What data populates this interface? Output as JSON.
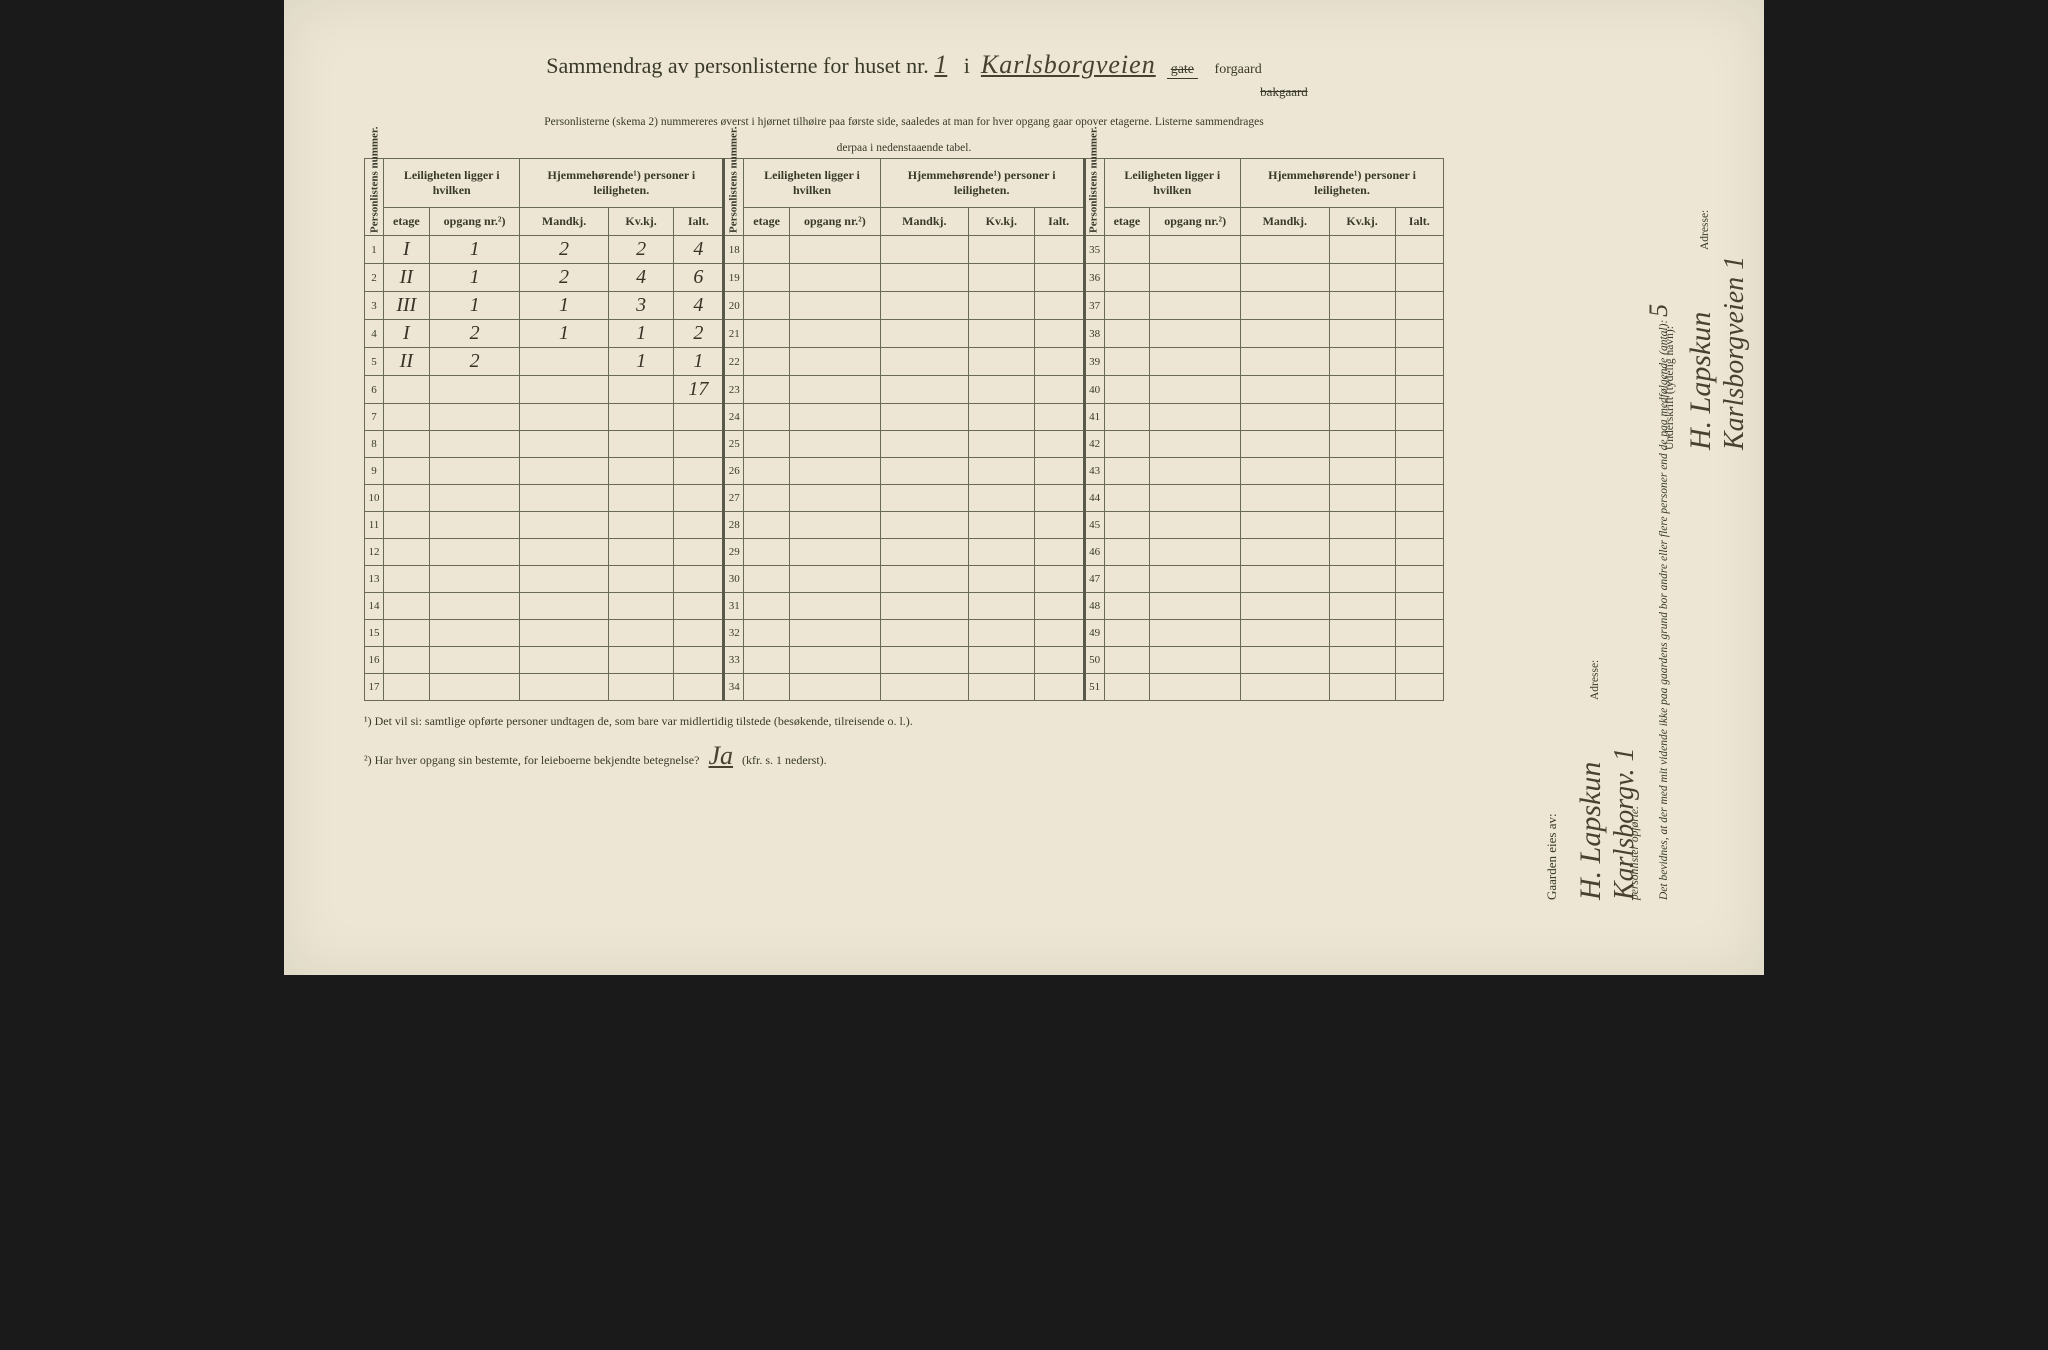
{
  "header": {
    "title_prefix": "Sammendrag av personlisterne for huset nr.",
    "house_number": "1",
    "conjunction": "i",
    "street_name": "Karlsborgveien",
    "gate_label": "gate",
    "forgaard": "forgaard",
    "bakgaard": "bakgaard",
    "instruction": "Personlisterne (skema 2) nummereres øverst i hjørnet tilhøire paa første side, saaledes at man for hver opgang gaar opover etagerne.  Listerne sammendrages",
    "instruction2": "derpaa i nedenstaaende tabel."
  },
  "columns": {
    "personlistens": "Personlistens nummer.",
    "leiligheten": "Leiligheten ligger i hvilken",
    "hjemme": "Hjemmehørende¹) personer i leiligheten.",
    "etage": "etage",
    "opgang": "opgang nr.²)",
    "mandkj": "Mandkj.",
    "kvkj": "Kv.kj.",
    "ialt": "Ialt."
  },
  "rows": [
    {
      "n": 1,
      "etage": "I",
      "opgang": "1",
      "m": "2",
      "k": "2",
      "ialt": "4"
    },
    {
      "n": 2,
      "etage": "II",
      "opgang": "1",
      "m": "2",
      "k": "4",
      "ialt": "6"
    },
    {
      "n": 3,
      "etage": "III",
      "opgang": "1",
      "m": "1",
      "k": "3",
      "ialt": "4"
    },
    {
      "n": 4,
      "etage": "I",
      "opgang": "2",
      "m": "1",
      "k": "1",
      "ialt": "2"
    },
    {
      "n": 5,
      "etage": "II",
      "opgang": "2",
      "m": "",
      "k": "1",
      "ialt": "1"
    },
    {
      "n": 6,
      "etage": "",
      "opgang": "",
      "m": "",
      "k": "",
      "ialt": "17"
    },
    {
      "n": 7
    },
    {
      "n": 8
    },
    {
      "n": 9
    },
    {
      "n": 10
    },
    {
      "n": 11
    },
    {
      "n": 12
    },
    {
      "n": 13
    },
    {
      "n": 14
    },
    {
      "n": 15
    },
    {
      "n": 16
    },
    {
      "n": 17
    }
  ],
  "midrows": [
    18,
    19,
    20,
    21,
    22,
    23,
    24,
    25,
    26,
    27,
    28,
    29,
    30,
    31,
    32,
    33,
    34
  ],
  "rightrows": [
    35,
    36,
    37,
    38,
    39,
    40,
    41,
    42,
    43,
    44,
    45,
    46,
    47,
    48,
    49,
    50,
    51
  ],
  "footnotes": {
    "f1": "¹)  Det vil si: samtlige opførte personer undtagen de, som bare var midlertidig tilstede (besøkende, tilreisende o. l.).",
    "f2_label": "²)  Har hver opgang sin bestemte, for leieboerne bekjendte betegnelse?",
    "f2_answer": "Ja",
    "f2_suffix": "(kfr. s. 1 nederst)."
  },
  "right": {
    "gaarden_eies": "Gaarden eies av:",
    "owner_sig": "H. Lapskun",
    "adresse_label": "Adresse:",
    "adresse": "Karlsborgv. 1",
    "bevidnes": "Det bevidnes, at der med mit vidende ikke paa gaardens grund bor andre eller flere personer end de paa medfølgende (antal):",
    "antal": "5",
    "opforte": "personlister opførte.",
    "underskrift_label": "Underskrift (tydelig navn):",
    "underskrift": "H. Lapskun",
    "adresse2": "Karlsborgveien 1"
  },
  "style": {
    "paper_bg": "#ede6d4",
    "ink": "#3a3a2a",
    "handwriting": "#3a3226",
    "border": "#6a6a5a"
  }
}
